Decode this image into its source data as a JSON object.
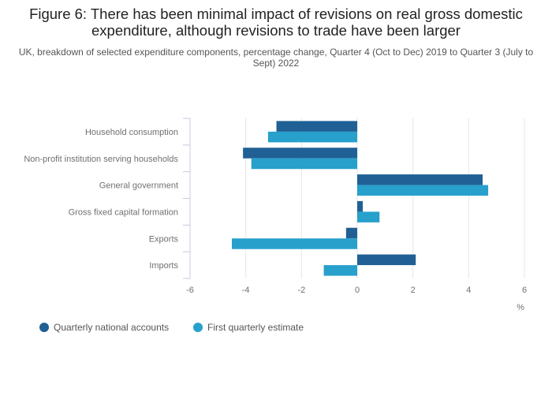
{
  "title": "Figure 6: There has been minimal impact of revisions on real gross domestic expenditure, although revisions to trade have been larger",
  "subtitle": "UK, breakdown of selected expenditure components, percentage change, Quarter 4 (Oct to Dec) 2019 to Quarter 3 (July to Sept) 2022",
  "colors": {
    "series_1": "#206095",
    "series_2": "#27a0cc",
    "grid": "#e6e6e6",
    "axis": "#c8c8e0",
    "label": "#707071"
  },
  "chart_data": {
    "type": "bar",
    "orientation": "horizontal",
    "categories": [
      "Household consumption",
      "Non-profit institution serving households",
      "General government",
      "Gross fixed capital formation",
      "Exports",
      "Imports"
    ],
    "series": [
      {
        "name": "Quarterly national accounts",
        "values": [
          -2.9,
          -4.1,
          4.5,
          0.2,
          -0.4,
          2.1
        ]
      },
      {
        "name": "First quarterly estimate",
        "values": [
          -3.2,
          -3.8,
          4.7,
          0.8,
          -4.5,
          -1.2
        ]
      }
    ],
    "xlim": [
      -6,
      6
    ],
    "xticks": [
      "-6",
      "-4",
      "-2",
      "0",
      "2",
      "4",
      "6"
    ],
    "xlabel": "%",
    "ylabel": "",
    "grid": true,
    "legend": "bottom-left"
  }
}
